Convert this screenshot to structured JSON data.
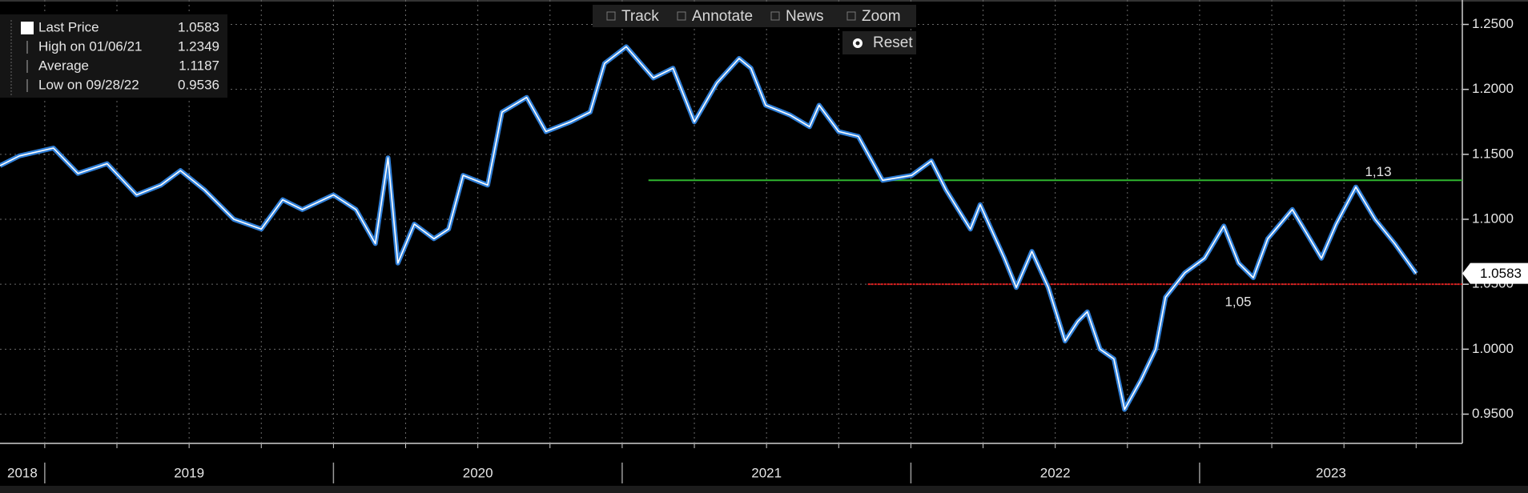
{
  "chart_data": {
    "type": "line",
    "toolbar": [
      "Track",
      "Annotate",
      "News",
      "Zoom"
    ],
    "reset_button": "Reset",
    "legend": [
      {
        "label": "Last Price",
        "value": 1.0583
      },
      {
        "label": "High on 01/06/21",
        "value": 1.2349
      },
      {
        "label": "Average",
        "value": 1.1187
      },
      {
        "label": "Low on 09/28/22",
        "value": 0.9536
      }
    ],
    "last_price_tag": 1.0583,
    "xlim": [
      2018.845,
      2023.91
    ],
    "xticks": [
      2018,
      2019,
      2020,
      2021,
      2022,
      2023
    ],
    "ylim": [
      0.9275,
      1.2688
    ],
    "yticks": [
      {
        "value": 0.95,
        "label": "0.9500"
      },
      {
        "value": 1.0,
        "label": "1.0000"
      },
      {
        "value": 1.05,
        "label": "1.0500"
      },
      {
        "value": 1.1,
        "label": "1.1000"
      },
      {
        "value": 1.15,
        "label": "1.1500"
      },
      {
        "value": 1.2,
        "label": "1.2000"
      },
      {
        "value": 1.25,
        "label": "1.2500"
      }
    ],
    "grid": true,
    "annotations": [
      {
        "value": 1.13,
        "label": "1,13",
        "x_start": 2021.091,
        "color": "#2fb52f"
      },
      {
        "value": 1.05,
        "label": "1,05",
        "x_start": 2021.851,
        "color": "#e02020"
      }
    ],
    "series": [
      {
        "name": "Last Price",
        "color": "#2f7fd8",
        "x": [
          2018.845,
          2018.912,
          2019.03,
          2019.115,
          2019.216,
          2019.318,
          2019.402,
          2019.47,
          2019.554,
          2019.655,
          2019.75,
          2019.824,
          2019.892,
          2020.0,
          2020.078,
          2020.145,
          2020.189,
          2020.223,
          2020.28,
          2020.348,
          2020.399,
          2020.449,
          2020.534,
          2020.584,
          2020.669,
          2020.736,
          2020.821,
          2020.889,
          2020.939,
          2021.014,
          2021.108,
          2021.176,
          2021.25,
          2021.328,
          2021.405,
          2021.446,
          2021.497,
          2021.581,
          2021.649,
          2021.682,
          2021.75,
          2021.818,
          2021.902,
          2022.003,
          2022.071,
          2022.122,
          2022.206,
          2022.24,
          2022.324,
          2022.365,
          2022.419,
          2022.476,
          2022.534,
          2022.578,
          2022.611,
          2022.655,
          2022.703,
          2022.74,
          2022.797,
          2022.848,
          2022.882,
          2022.949,
          2023.017,
          2023.084,
          2023.135,
          2023.186,
          2023.236,
          2023.321,
          2023.372,
          2023.422,
          2023.473,
          2023.541,
          2023.608,
          2023.676,
          2023.75
        ],
        "values": [
          1.1413,
          1.1488,
          1.1548,
          1.1353,
          1.1428,
          1.1188,
          1.1263,
          1.1375,
          1.1225,
          1.1,
          1.0925,
          1.115,
          1.1075,
          1.1188,
          1.1075,
          1.0813,
          1.1473,
          1.0663,
          1.0963,
          1.085,
          1.0925,
          1.1338,
          1.1263,
          1.1825,
          1.1938,
          1.1675,
          1.175,
          1.1825,
          1.22,
          1.2328,
          1.2088,
          1.2163,
          1.175,
          1.205,
          1.2238,
          1.2163,
          1.1878,
          1.1803,
          1.1713,
          1.1878,
          1.1675,
          1.1638,
          1.13,
          1.1338,
          1.145,
          1.1225,
          1.0925,
          1.1113,
          1.07,
          1.0475,
          1.0753,
          1.0475,
          1.0063,
          1.0213,
          1.0288,
          1.0,
          0.9925,
          0.9536,
          0.9763,
          1.0,
          1.04,
          1.0588,
          1.07,
          1.0948,
          1.0663,
          1.055,
          1.085,
          1.1075,
          1.0888,
          1.07,
          1.0963,
          1.1248,
          1.1,
          1.0813,
          1.0583
        ]
      }
    ]
  }
}
